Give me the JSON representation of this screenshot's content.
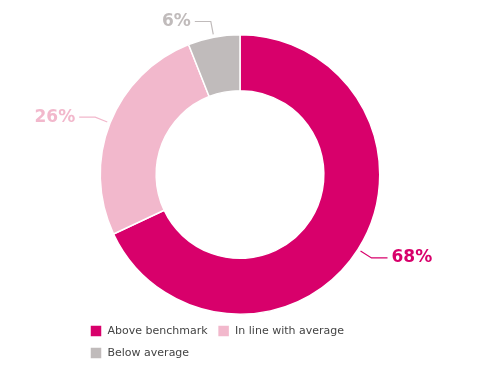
{
  "chart_data": {
    "type": "doughnut",
    "categories": [
      "Above benchmark",
      "In line with average",
      "Below average"
    ],
    "values": [
      68,
      26,
      6
    ],
    "value_labels": [
      "68%",
      "26%",
      "6%"
    ],
    "colors": [
      "#D8006B",
      "#F2B8CC",
      "#C0BBBB"
    ],
    "data_labels": true,
    "legend": "bottom-left"
  }
}
